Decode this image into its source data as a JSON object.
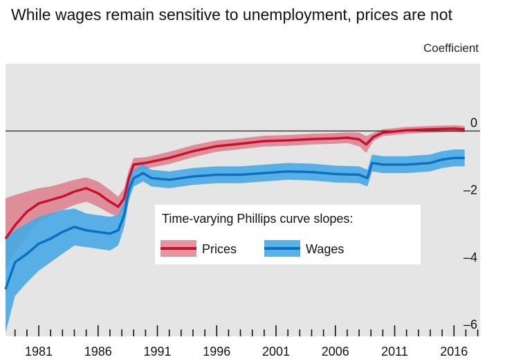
{
  "title": "While wages remain sensitive to unemployment, prices are not",
  "unit_label": "Coefficient",
  "colors": {
    "plot_bg": "#e5e5e5",
    "prices_line": "#c8102e",
    "prices_band": "#d9707f",
    "wages_line": "#0a71c2",
    "wages_band": "#47a9e6",
    "zero_line": "#222222"
  },
  "chart_data": {
    "type": "line",
    "title": "While wages remain sensitive to unemployment, prices are not",
    "ylabel": "Coefficient",
    "xlim": [
      1978.2,
      2018.2
    ],
    "ylim": [
      -6.1,
      2.0
    ],
    "x_ticks": [
      1981,
      1986,
      1991,
      1996,
      2001,
      2006,
      2011,
      2016
    ],
    "y_ticks": [
      0,
      -2,
      -4,
      -6
    ],
    "y_tick_labels": [
      "0",
      "–2",
      "–4",
      "–6"
    ],
    "grid": false,
    "legend": {
      "title": "Time-varying Phillips curve slopes:",
      "position": "center",
      "entries": [
        "Prices",
        "Wages"
      ]
    },
    "series": [
      {
        "name": "Prices",
        "x": [
          1978.2,
          1979,
          1980,
          1981,
          1982,
          1983,
          1984,
          1985,
          1986,
          1987,
          1987.7,
          1988.2,
          1988.6,
          1989,
          1990,
          1992,
          1994,
          1996,
          1998,
          2000,
          2002,
          2004,
          2006,
          2007,
          2008,
          2008.6,
          2009.2,
          2010,
          2012,
          2014,
          2016,
          2016.9
        ],
        "y": [
          -3.2,
          -2.8,
          -2.4,
          -2.15,
          -2.05,
          -1.95,
          -1.8,
          -1.7,
          -1.85,
          -2.1,
          -2.25,
          -2.0,
          -1.4,
          -1.0,
          -0.95,
          -0.8,
          -0.6,
          -0.45,
          -0.38,
          -0.3,
          -0.28,
          -0.24,
          -0.22,
          -0.2,
          -0.25,
          -0.4,
          -0.18,
          -0.05,
          0.02,
          0.05,
          0.07,
          0.05
        ],
        "lower": [
          -4.1,
          -3.6,
          -3.1,
          -2.7,
          -2.5,
          -2.35,
          -2.2,
          -2.1,
          -2.25,
          -2.45,
          -2.55,
          -2.3,
          -1.65,
          -1.2,
          -1.12,
          -0.98,
          -0.78,
          -0.62,
          -0.54,
          -0.46,
          -0.44,
          -0.4,
          -0.38,
          -0.36,
          -0.45,
          -0.65,
          -0.3,
          -0.15,
          -0.08,
          -0.05,
          -0.03,
          -0.05
        ],
        "upper": [
          -2.0,
          -1.9,
          -1.8,
          -1.7,
          -1.65,
          -1.55,
          -1.45,
          -1.38,
          -1.5,
          -1.75,
          -1.95,
          -1.7,
          -1.15,
          -0.8,
          -0.78,
          -0.62,
          -0.42,
          -0.28,
          -0.22,
          -0.14,
          -0.12,
          -0.08,
          -0.06,
          -0.04,
          -0.05,
          -0.15,
          -0.06,
          0.05,
          0.12,
          0.15,
          0.17,
          0.15
        ]
      },
      {
        "name": "Wages",
        "x": [
          1978.2,
          1979,
          1980,
          1981,
          1982,
          1983,
          1984,
          1985,
          1986,
          1987,
          1987.7,
          1988.2,
          1988.6,
          1989,
          1989.8,
          1990.5,
          1992,
          1994,
          1996,
          1998,
          2000,
          2002,
          2004,
          2006,
          2008,
          2008.7,
          2009.1,
          2010,
          2012,
          2014,
          2015,
          2016,
          2016.9
        ],
        "y": [
          -4.7,
          -3.9,
          -3.65,
          -3.35,
          -3.2,
          -3.0,
          -2.85,
          -2.95,
          -3.0,
          -3.05,
          -2.95,
          -2.5,
          -1.75,
          -1.4,
          -1.25,
          -1.4,
          -1.45,
          -1.35,
          -1.3,
          -1.3,
          -1.25,
          -1.2,
          -1.22,
          -1.28,
          -1.3,
          -1.4,
          -0.95,
          -1.0,
          -1.0,
          -0.95,
          -0.85,
          -0.8,
          -0.8
        ],
        "lower": [
          -6.0,
          -4.9,
          -4.5,
          -4.15,
          -3.9,
          -3.65,
          -3.4,
          -3.45,
          -3.5,
          -3.55,
          -3.4,
          -2.85,
          -2.05,
          -1.65,
          -1.5,
          -1.65,
          -1.7,
          -1.6,
          -1.55,
          -1.55,
          -1.5,
          -1.45,
          -1.47,
          -1.53,
          -1.55,
          -1.65,
          -1.2,
          -1.25,
          -1.25,
          -1.2,
          -1.1,
          -1.05,
          -1.05
        ],
        "upper": [
          -3.2,
          -2.95,
          -2.75,
          -2.55,
          -2.45,
          -2.35,
          -2.3,
          -2.45,
          -2.5,
          -2.55,
          -2.5,
          -2.1,
          -1.45,
          -1.15,
          -1.0,
          -1.15,
          -1.2,
          -1.1,
          -1.05,
          -1.05,
          -1.0,
          -0.95,
          -0.97,
          -1.03,
          -1.05,
          -1.15,
          -0.7,
          -0.75,
          -0.75,
          -0.7,
          -0.6,
          -0.55,
          -0.55
        ]
      }
    ]
  }
}
